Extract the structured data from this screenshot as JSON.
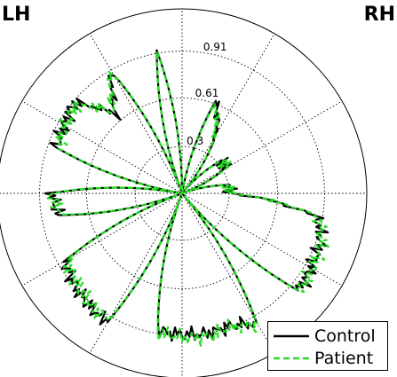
{
  "hemispheres": {
    "left": "LH",
    "right": "RH"
  },
  "chart_data": {
    "type": "polar-line",
    "radial_ticks": [
      "0.3",
      "0.61",
      "0.91"
    ],
    "rlim": [
      0,
      1.18
    ],
    "angular_divisions": 12,
    "grid": true,
    "legend_position": "bottom-right",
    "theta_deg": [
      0,
      10,
      20,
      30,
      40,
      50,
      60,
      70,
      80,
      90,
      100,
      110,
      120,
      130,
      140,
      150,
      160,
      170,
      180,
      190,
      200,
      210,
      220,
      230,
      240,
      250,
      260,
      270,
      280,
      290,
      300,
      310,
      320,
      330,
      340,
      350
    ],
    "series": [
      {
        "name": "Control",
        "color": "#000000",
        "style": "solid",
        "r": [
          0.3,
          0.31,
          0.0,
          0.32,
          0.33,
          0.02,
          0.44,
          0.63,
          0.0,
          0.0,
          0.93,
          0.02,
          0.9,
          0.66,
          0.9,
          0.87,
          0.85,
          0.01,
          0.83,
          0.8,
          0.0,
          0.86,
          0.9,
          0.93,
          0.95,
          0.02,
          0.89,
          0.9,
          0.91,
          0.9,
          0.95,
          0.01,
          0.97,
          0.95,
          0.94,
          0.88
        ]
      },
      {
        "name": "Patient",
        "color": "#22dd22",
        "style": "dashed",
        "r": [
          0.31,
          0.3,
          0.01,
          0.34,
          0.32,
          0.03,
          0.42,
          0.61,
          0.0,
          0.0,
          0.92,
          0.03,
          0.91,
          0.68,
          0.88,
          0.86,
          0.84,
          0.02,
          0.84,
          0.78,
          0.0,
          0.85,
          0.88,
          0.92,
          0.94,
          0.03,
          0.9,
          0.92,
          0.93,
          0.91,
          0.96,
          0.02,
          0.98,
          0.96,
          0.95,
          0.89
        ]
      }
    ]
  },
  "legend": {
    "control": "Control",
    "patient": "Patient"
  }
}
